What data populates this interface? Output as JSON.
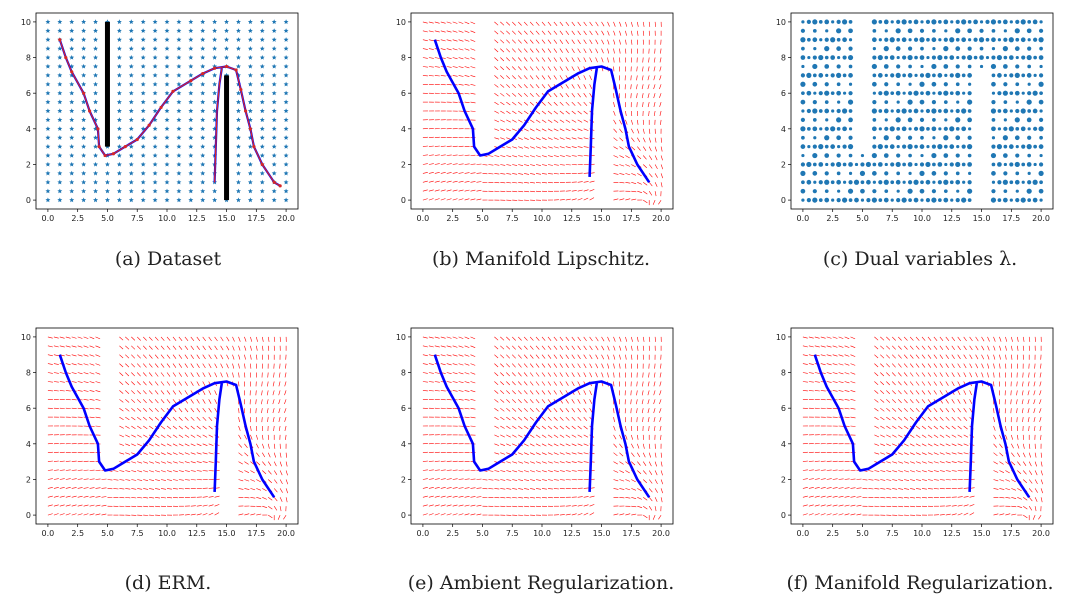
{
  "colors": {
    "dataset_marker": "#1f77b4",
    "trajectory_line": "#0000ff",
    "path_overlay": "#d62728",
    "vector_field": "#ff0000",
    "obstacle": "#000000",
    "axis": "#000000"
  },
  "axes": {
    "x_ticks": [
      "0.0",
      "2.5",
      "5.0",
      "7.5",
      "10.0",
      "12.5",
      "15.0",
      "17.5",
      "20.0"
    ],
    "y_ticks": [
      "0",
      "2",
      "4",
      "6",
      "8",
      "10"
    ],
    "xlim": [
      -1,
      21
    ],
    "ylim": [
      -0.5,
      10.5
    ]
  },
  "chart_data": [
    {
      "id": "a",
      "type": "scatter",
      "title": "",
      "marker": "star",
      "grid": {
        "x": [
          0,
          20,
          41
        ],
        "y": [
          0,
          10,
          21
        ]
      },
      "obstacles": [
        {
          "x": 5,
          "y0": 3,
          "y1": 10
        },
        {
          "x": 15,
          "y0": 0,
          "y1": 7
        }
      ],
      "trajectory": [
        [
          1,
          9
        ],
        [
          1.5,
          8
        ],
        [
          2,
          7.2
        ],
        [
          3,
          6
        ],
        [
          3.5,
          5
        ],
        [
          4.2,
          4
        ],
        [
          4.3,
          3
        ],
        [
          4.8,
          2.5
        ],
        [
          5.5,
          2.6
        ],
        [
          6.5,
          3
        ],
        [
          7.5,
          3.4
        ],
        [
          8.5,
          4.2
        ],
        [
          9.5,
          5.2
        ],
        [
          10.5,
          6.1
        ],
        [
          12,
          6.7
        ],
        [
          13,
          7.1
        ],
        [
          14,
          7.4
        ],
        [
          15,
          7.5
        ],
        [
          15.8,
          7.3
        ],
        [
          16.2,
          6.2
        ],
        [
          16.6,
          5
        ],
        [
          17,
          4
        ],
        [
          17.3,
          3
        ],
        [
          18,
          2
        ],
        [
          19,
          1
        ],
        [
          19.5,
          0.8
        ]
      ],
      "trajectory_short": [
        [
          14,
          1
        ],
        [
          14.1,
          3
        ],
        [
          14.2,
          5
        ],
        [
          14.4,
          6.5
        ],
        [
          14.6,
          7.4
        ]
      ]
    },
    {
      "id": "b",
      "type": "quiver",
      "obstacles": [
        {
          "x": 5,
          "y0": 3,
          "y1": 10
        },
        {
          "x": 15,
          "y0": 0,
          "y1": 7
        }
      ],
      "trajectory": [
        [
          1,
          9
        ],
        [
          1.5,
          8
        ],
        [
          2,
          7.2
        ],
        [
          3,
          6
        ],
        [
          3.5,
          5
        ],
        [
          4.2,
          4
        ],
        [
          4.3,
          3
        ],
        [
          4.8,
          2.5
        ],
        [
          5.5,
          2.6
        ],
        [
          6.5,
          3
        ],
        [
          7.5,
          3.4
        ],
        [
          8.5,
          4.2
        ],
        [
          9.5,
          5.2
        ],
        [
          10.5,
          6.1
        ],
        [
          12,
          6.7
        ],
        [
          13,
          7.1
        ],
        [
          14,
          7.4
        ],
        [
          15,
          7.5
        ],
        [
          15.8,
          7.3
        ],
        [
          16.2,
          6.2
        ],
        [
          16.6,
          5
        ],
        [
          17,
          4
        ],
        [
          17.3,
          3
        ],
        [
          18,
          2
        ],
        [
          19,
          1
        ]
      ],
      "trajectory_short": [
        [
          14,
          1.3
        ],
        [
          14.1,
          3
        ],
        [
          14.2,
          5
        ],
        [
          14.4,
          6.5
        ],
        [
          14.6,
          7.4
        ]
      ]
    },
    {
      "id": "c",
      "type": "scatter",
      "marker": "dot",
      "grid": {
        "x": [
          0,
          20,
          41
        ],
        "y": [
          0,
          10,
          21
        ]
      },
      "obstacles": [
        {
          "x": 5,
          "y0": 3,
          "y1": 10
        },
        {
          "x": 15,
          "y0": 0,
          "y1": 7
        }
      ]
    },
    {
      "id": "d",
      "type": "quiver",
      "obstacles": [
        {
          "x": 5,
          "y0": 3,
          "y1": 10
        },
        {
          "x": 15,
          "y0": 0,
          "y1": 7
        }
      ],
      "trajectory": [
        [
          1,
          9
        ],
        [
          1.5,
          8
        ],
        [
          2,
          7.2
        ],
        [
          3,
          6
        ],
        [
          3.5,
          5
        ],
        [
          4.2,
          4
        ],
        [
          4.3,
          3
        ],
        [
          4.8,
          2.5
        ],
        [
          5.5,
          2.6
        ],
        [
          6.5,
          3
        ],
        [
          7.5,
          3.4
        ],
        [
          8.5,
          4.2
        ],
        [
          9.5,
          5.2
        ],
        [
          10.5,
          6.1
        ],
        [
          12,
          6.7
        ],
        [
          13,
          7.1
        ],
        [
          14,
          7.4
        ],
        [
          15,
          7.5
        ],
        [
          15.8,
          7.3
        ],
        [
          16.2,
          6.2
        ],
        [
          16.6,
          5
        ],
        [
          17,
          4
        ],
        [
          17.3,
          3
        ],
        [
          18,
          2
        ],
        [
          19,
          1
        ]
      ],
      "trajectory_short": [
        [
          14,
          1.3
        ],
        [
          14.1,
          3
        ],
        [
          14.2,
          5
        ],
        [
          14.4,
          6.5
        ],
        [
          14.6,
          7.4
        ]
      ]
    },
    {
      "id": "e",
      "type": "quiver",
      "obstacles": [
        {
          "x": 5,
          "y0": 3,
          "y1": 10
        },
        {
          "x": 15,
          "y0": 0,
          "y1": 7
        }
      ],
      "trajectory": [
        [
          1,
          9
        ],
        [
          1.5,
          8
        ],
        [
          2,
          7.2
        ],
        [
          3,
          6
        ],
        [
          3.5,
          5
        ],
        [
          4.2,
          4
        ],
        [
          4.3,
          3
        ],
        [
          4.8,
          2.5
        ],
        [
          5.5,
          2.6
        ],
        [
          6.5,
          3
        ],
        [
          7.5,
          3.4
        ],
        [
          8.5,
          4.2
        ],
        [
          9.5,
          5.2
        ],
        [
          10.5,
          6.1
        ],
        [
          12,
          6.7
        ],
        [
          13,
          7.1
        ],
        [
          14,
          7.4
        ],
        [
          15,
          7.5
        ],
        [
          15.8,
          7.3
        ],
        [
          16.2,
          6.2
        ],
        [
          16.6,
          5
        ],
        [
          17,
          4
        ],
        [
          17.3,
          3
        ],
        [
          18,
          2
        ],
        [
          19,
          1
        ]
      ],
      "trajectory_short": [
        [
          14,
          1.3
        ],
        [
          14.1,
          3
        ],
        [
          14.2,
          5
        ],
        [
          14.4,
          6.5
        ],
        [
          14.6,
          7.4
        ]
      ]
    },
    {
      "id": "f",
      "type": "quiver",
      "obstacles": [
        {
          "x": 5,
          "y0": 3,
          "y1": 10
        },
        {
          "x": 15,
          "y0": 0,
          "y1": 7
        }
      ],
      "trajectory": [
        [
          1,
          9
        ],
        [
          1.5,
          8
        ],
        [
          2,
          7.2
        ],
        [
          3,
          6
        ],
        [
          3.5,
          5
        ],
        [
          4.2,
          4
        ],
        [
          4.3,
          3
        ],
        [
          4.8,
          2.5
        ],
        [
          5.5,
          2.6
        ],
        [
          6.5,
          3
        ],
        [
          7.5,
          3.4
        ],
        [
          8.5,
          4.2
        ],
        [
          9.5,
          5.2
        ],
        [
          10.5,
          6.1
        ],
        [
          12,
          6.7
        ],
        [
          13,
          7.1
        ],
        [
          14,
          7.4
        ],
        [
          15,
          7.5
        ],
        [
          15.8,
          7.3
        ],
        [
          16.2,
          6.2
        ],
        [
          16.6,
          5
        ],
        [
          17,
          4
        ],
        [
          17.3,
          3
        ],
        [
          18,
          2
        ],
        [
          19,
          1
        ]
      ],
      "trajectory_short": [
        [
          14,
          1.3
        ],
        [
          14.1,
          3
        ],
        [
          14.2,
          5
        ],
        [
          14.4,
          6.5
        ],
        [
          14.6,
          7.4
        ]
      ]
    }
  ],
  "captions": {
    "a": "(a) Dataset",
    "b": "(b) Manifold Lipschitz.",
    "c": "(c) Dual variables λ.",
    "d": "(d) ERM.",
    "e": "(e) Ambient Regularization.",
    "f": "(f) Manifold Regularization."
  }
}
